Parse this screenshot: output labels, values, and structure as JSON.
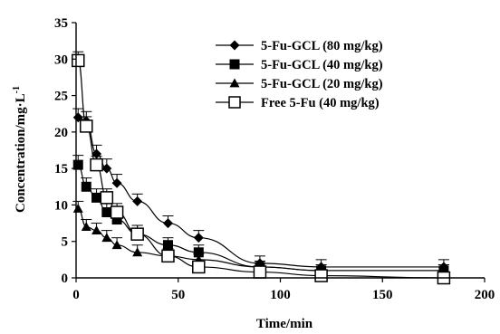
{
  "chart_data": {
    "type": "line",
    "xlabel": "Time/min",
    "ylabel": "Concentration/mg·L",
    "ylabel_superscript": "-1",
    "xlim": [
      0,
      200
    ],
    "ylim": [
      0,
      35
    ],
    "xticks": [
      0,
      50,
      100,
      150,
      200
    ],
    "yticks": [
      0,
      5,
      10,
      15,
      20,
      25,
      30,
      35
    ],
    "grid": false,
    "legend_position": "top-right",
    "series": [
      {
        "name": "5-Fu-GCL (80 mg/kg)",
        "marker": "diamond",
        "x": [
          1,
          5,
          10,
          15,
          20,
          30,
          45,
          60,
          90,
          120,
          180
        ],
        "y": [
          22,
          21.5,
          17,
          15,
          13,
          10.5,
          7.5,
          5.5,
          2,
          1.5,
          1.5
        ],
        "err": [
          1.2,
          1.3,
          1.2,
          1.3,
          1.2,
          1,
          1,
          1,
          1,
          1,
          1
        ]
      },
      {
        "name": "5-Fu-GCL (40 mg/kg)",
        "marker": "square-filled",
        "x": [
          1,
          5,
          10,
          15,
          20,
          30,
          45,
          60,
          90,
          120,
          180
        ],
        "y": [
          15.5,
          12.5,
          11,
          9,
          8,
          6,
          4.5,
          3.5,
          1.5,
          1,
          1
        ],
        "err": [
          1.3,
          1.2,
          1.2,
          1.2,
          1.2,
          1.2,
          1,
          1,
          0.8,
          0.8,
          0.8
        ]
      },
      {
        "name": "5-Fu-GCL (20 mg/kg)",
        "marker": "triangle",
        "x": [
          1,
          5,
          10,
          15,
          20,
          30,
          45,
          60,
          90,
          120,
          180
        ],
        "y": [
          9.5,
          7,
          6.5,
          5.5,
          4.5,
          3.5,
          3,
          2.5,
          1.5,
          1,
          1
        ],
        "err": [
          1,
          1,
          1,
          1,
          1,
          1,
          0.8,
          0.8,
          0.8,
          0.8,
          0.8
        ]
      },
      {
        "name": "Free 5-Fu (40 mg/kg)",
        "marker": "square-open",
        "x": [
          1,
          5,
          10,
          15,
          20,
          30,
          45,
          60,
          90,
          120,
          180
        ],
        "y": [
          29.8,
          20.8,
          15.5,
          11,
          9,
          6,
          3,
          1.5,
          0.8,
          0.3,
          0
        ],
        "err": [
          1.2,
          1.3,
          1.2,
          1.2,
          1.2,
          1.2,
          1,
          0.8,
          0.6,
          0.5,
          0.5
        ]
      }
    ]
  }
}
